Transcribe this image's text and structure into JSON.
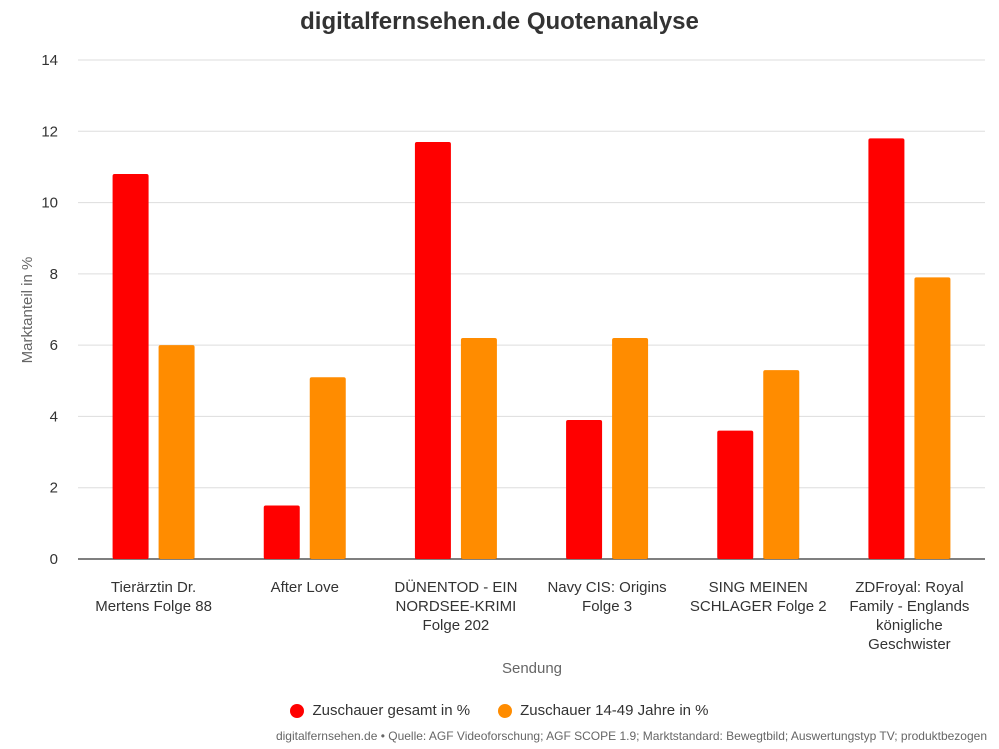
{
  "chart_data": {
    "type": "bar",
    "title": "digitalfernsehen.de Quotenanalyse",
    "xlabel": "Sendung",
    "ylabel": "Marktanteil in %",
    "ylim": [
      0,
      14
    ],
    "yticks": [
      "0",
      "2",
      "4",
      "6",
      "8",
      "10",
      "12",
      "14"
    ],
    "grid": true,
    "legend_position": "bottom",
    "categories": [
      [
        "Tierärztin Dr.",
        "Mertens Folge 88"
      ],
      [
        "After Love"
      ],
      [
        "DÜNENTOD - EIN",
        "NORDSEE-KRIMI",
        "Folge 202"
      ],
      [
        "Navy CIS: Origins",
        "Folge 3"
      ],
      [
        "SING MEINEN",
        "SCHLAGER Folge 2"
      ],
      [
        "ZDFroyal: Royal",
        "Family - Englands",
        "königliche",
        "Geschwister"
      ]
    ],
    "series": [
      {
        "name": "Zuschauer gesamt in %",
        "color": "#ff0000",
        "values": [
          10.8,
          1.5,
          11.7,
          3.9,
          3.6,
          11.8
        ]
      },
      {
        "name": "Zuschauer 14-49 Jahre in %",
        "color": "#ff8c00",
        "values": [
          6.0,
          5.1,
          6.2,
          6.2,
          5.3,
          7.9
        ]
      }
    ]
  },
  "source": "digitalfernsehen.de • Quelle: AGF Videoforschung; AGF SCOPE 1.9; Marktstandard: Bewegtbild; Auswertungstyp TV; produktbezogen"
}
